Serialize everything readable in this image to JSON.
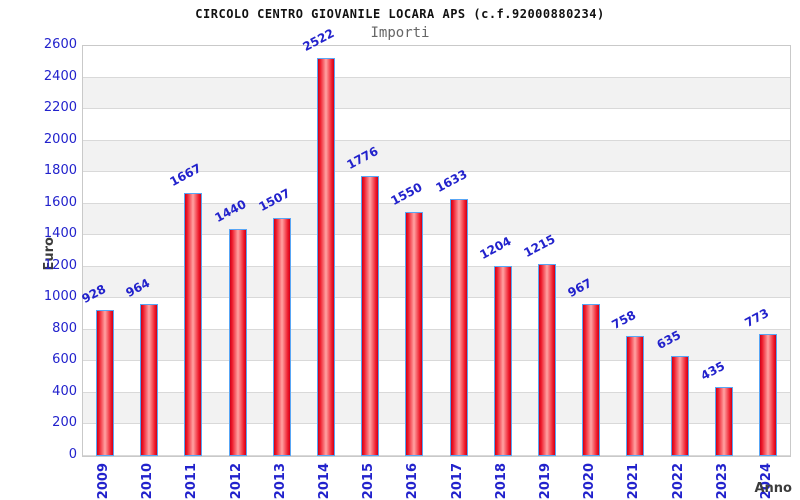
{
  "chart_data": {
    "type": "bar",
    "title": "CIRCOLO CENTRO GIOVANILE LOCARA APS (c.f.92000880234)",
    "subtitle": "Importi",
    "xlabel": "Anno",
    "ylabel": "Euro",
    "categories": [
      "2009",
      "2010",
      "2011",
      "2012",
      "2013",
      "2014",
      "2015",
      "2016",
      "2017",
      "2018",
      "2019",
      "2020",
      "2021",
      "2022",
      "2023",
      "2024"
    ],
    "values": [
      928,
      964,
      1667,
      1440,
      1507,
      2522,
      1776,
      1550,
      1633,
      1204,
      1215,
      967,
      758,
      635,
      435,
      773
    ],
    "ylim": [
      0,
      2600
    ],
    "ytick_step": 200,
    "grid": "horizontal-bands",
    "legend": "none",
    "colors": {
      "tick_text": "#2222cc",
      "bar_gradient_edge": "#cf0018",
      "bar_gradient_bright": "#ee1c2c",
      "bar_gradient_mid": "#ffa3a3",
      "bar_border": "#58a6f5",
      "band_alt": "#f2f2f2",
      "grid_line": "#d9d9d9",
      "plot_border": "#c9c9c9",
      "title_text": "#111111",
      "subtitle_text": "#666666",
      "axis_label_text": "#3c3c3c"
    }
  }
}
